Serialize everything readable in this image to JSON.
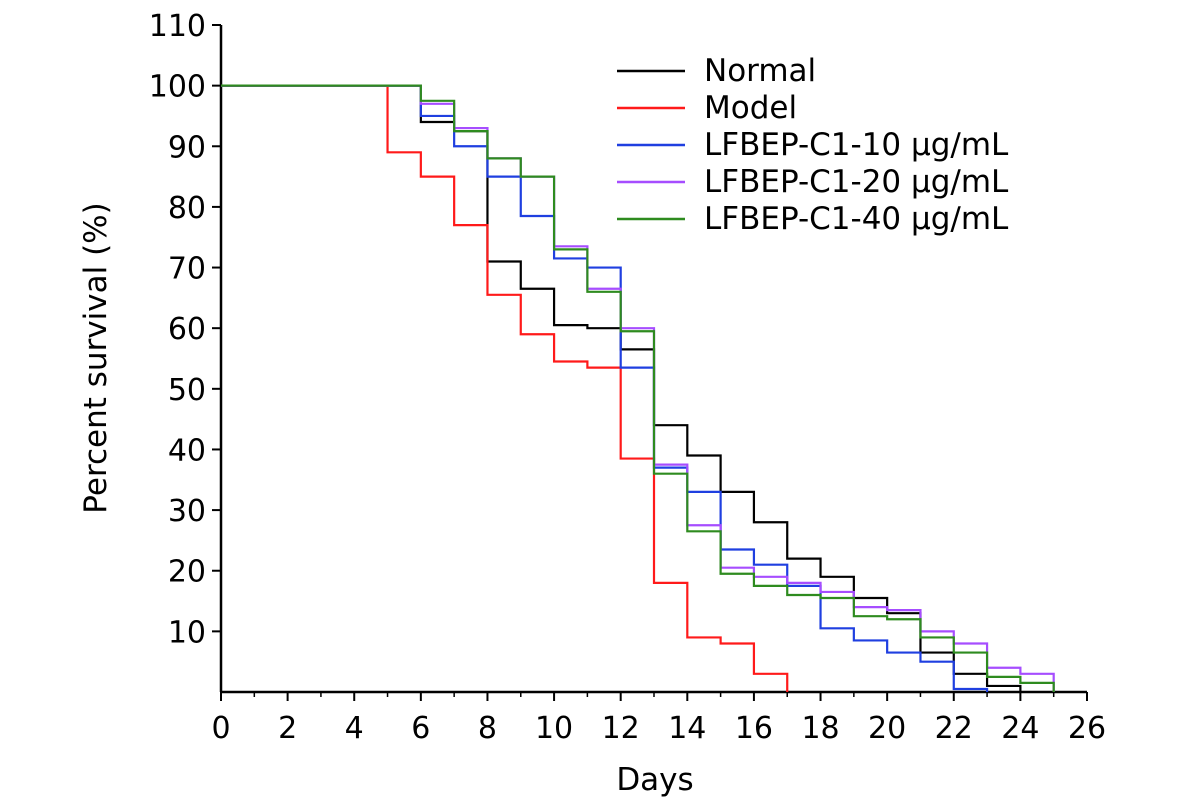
{
  "chart_data": {
    "type": "line",
    "step": true,
    "title": "",
    "xlabel": "Days",
    "ylabel": "Percent survival (%)",
    "xlim": [
      0,
      26
    ],
    "ylim": [
      0,
      110
    ],
    "xticks": [
      0,
      2,
      4,
      6,
      8,
      10,
      12,
      14,
      16,
      18,
      20,
      22,
      24,
      26
    ],
    "yticks": [
      10,
      20,
      30,
      40,
      50,
      60,
      70,
      80,
      90,
      100,
      110
    ],
    "grid": false,
    "legend_position": "top-right",
    "series": [
      {
        "name": "Normal",
        "color": "#000000",
        "points": [
          [
            0,
            100
          ],
          [
            6,
            94
          ],
          [
            7,
            92.5
          ],
          [
            8,
            71
          ],
          [
            9,
            66.5
          ],
          [
            10,
            60.5
          ],
          [
            11,
            60
          ],
          [
            12,
            56.5
          ],
          [
            13,
            44
          ],
          [
            14,
            39
          ],
          [
            15,
            33
          ],
          [
            16,
            28
          ],
          [
            17,
            22
          ],
          [
            18,
            19
          ],
          [
            19,
            15.5
          ],
          [
            20,
            13
          ],
          [
            21,
            6.5
          ],
          [
            22,
            3
          ],
          [
            23,
            1
          ],
          [
            24,
            0
          ]
        ]
      },
      {
        "name": "Model",
        "color": "#ff1a1a",
        "points": [
          [
            0,
            100
          ],
          [
            5,
            89
          ],
          [
            6,
            85
          ],
          [
            7,
            77
          ],
          [
            8,
            65.5
          ],
          [
            9,
            59
          ],
          [
            10,
            54.5
          ],
          [
            11,
            53.5
          ],
          [
            12,
            38.5
          ],
          [
            13,
            18
          ],
          [
            14,
            9
          ],
          [
            15,
            8
          ],
          [
            16,
            3
          ],
          [
            17,
            0
          ]
        ]
      },
      {
        "name": "LFBEP-C1-10 μg/mL",
        "color": "#1f3fe0",
        "points": [
          [
            0,
            100
          ],
          [
            6,
            95
          ],
          [
            7,
            90
          ],
          [
            8,
            85
          ],
          [
            9,
            78.5
          ],
          [
            10,
            71.5
          ],
          [
            11,
            70
          ],
          [
            12,
            53.5
          ],
          [
            13,
            37
          ],
          [
            14,
            33
          ],
          [
            15,
            23.5
          ],
          [
            16,
            21
          ],
          [
            17,
            17.5
          ],
          [
            18,
            10.5
          ],
          [
            19,
            8.5
          ],
          [
            20,
            6.5
          ],
          [
            21,
            5
          ],
          [
            22,
            0.5
          ],
          [
            23,
            0
          ]
        ]
      },
      {
        "name": "LFBEP-C1-20 μg/mL",
        "color": "#a64dff",
        "points": [
          [
            0,
            100
          ],
          [
            6,
            97
          ],
          [
            7,
            93
          ],
          [
            8,
            88
          ],
          [
            9,
            85
          ],
          [
            10,
            73.5
          ],
          [
            11,
            66.5
          ],
          [
            12,
            60
          ],
          [
            13,
            37.5
          ],
          [
            14,
            27.5
          ],
          [
            15,
            20.5
          ],
          [
            16,
            19
          ],
          [
            17,
            18
          ],
          [
            18,
            16.5
          ],
          [
            19,
            14
          ],
          [
            20,
            13.5
          ],
          [
            21,
            10
          ],
          [
            22,
            8
          ],
          [
            23,
            4
          ],
          [
            24,
            3
          ],
          [
            25,
            0
          ]
        ]
      },
      {
        "name": "LFBEP-C1-40 μg/mL",
        "color": "#2e8b1f",
        "points": [
          [
            0,
            100
          ],
          [
            6,
            97.5
          ],
          [
            7,
            92.5
          ],
          [
            8,
            88
          ],
          [
            9,
            85
          ],
          [
            10,
            73
          ],
          [
            11,
            66
          ],
          [
            12,
            59.5
          ],
          [
            13,
            36
          ],
          [
            14,
            26.5
          ],
          [
            15,
            19.5
          ],
          [
            16,
            17.5
          ],
          [
            17,
            16
          ],
          [
            18,
            15.5
          ],
          [
            19,
            12.5
          ],
          [
            20,
            12
          ],
          [
            21,
            9
          ],
          [
            22,
            6.5
          ],
          [
            23,
            2.5
          ],
          [
            24,
            1.5
          ],
          [
            25,
            0
          ]
        ]
      }
    ]
  }
}
